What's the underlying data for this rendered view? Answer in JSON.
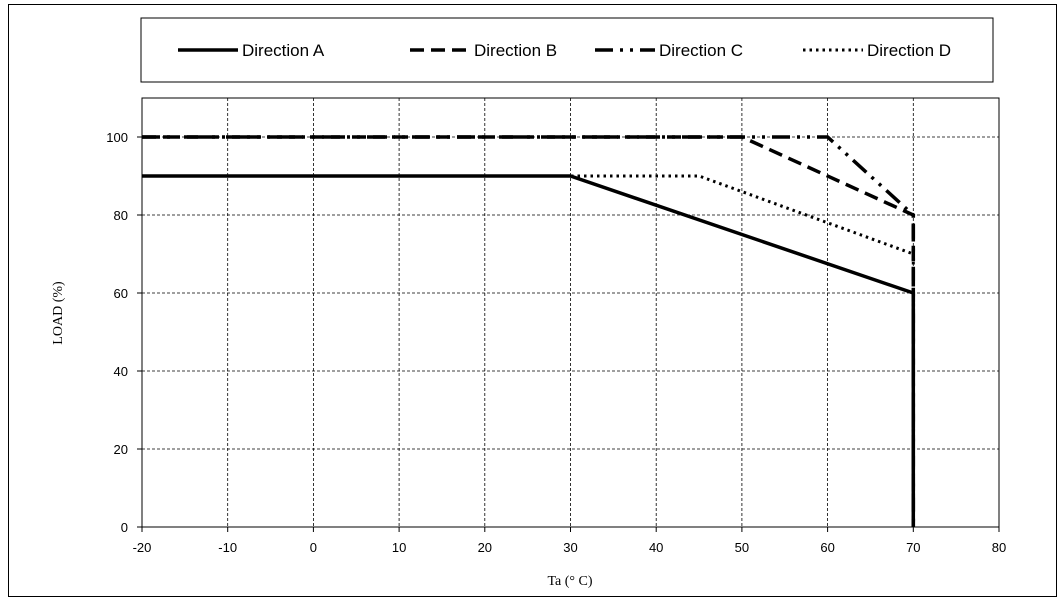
{
  "chart_data": {
    "type": "line",
    "title": "",
    "xlabel": "Ta (° C)",
    "ylabel": "LOAD (%)",
    "xlim": [
      -20,
      80
    ],
    "ylim": [
      0,
      110
    ],
    "xticks": [
      -20,
      -10,
      0,
      10,
      20,
      30,
      40,
      50,
      60,
      70,
      80
    ],
    "yticks": [
      0,
      20,
      40,
      60,
      80,
      100
    ],
    "grid": true,
    "legend_position": "top",
    "series": [
      {
        "name": "Direction A",
        "style": "solid",
        "x": [
          -20,
          30,
          70,
          70
        ],
        "y": [
          90,
          90,
          60,
          0
        ]
      },
      {
        "name": "Direction B",
        "style": "dashed",
        "x": [
          -20,
          50,
          70,
          70
        ],
        "y": [
          100,
          100,
          80,
          0
        ]
      },
      {
        "name": "Direction C",
        "style": "dash-dot-dot",
        "x": [
          -20,
          60,
          70,
          70
        ],
        "y": [
          100,
          100,
          80,
          0
        ]
      },
      {
        "name": "Direction D",
        "style": "dotted",
        "x": [
          -20,
          45,
          70,
          70
        ],
        "y": [
          90,
          90,
          70,
          0
        ]
      }
    ]
  }
}
